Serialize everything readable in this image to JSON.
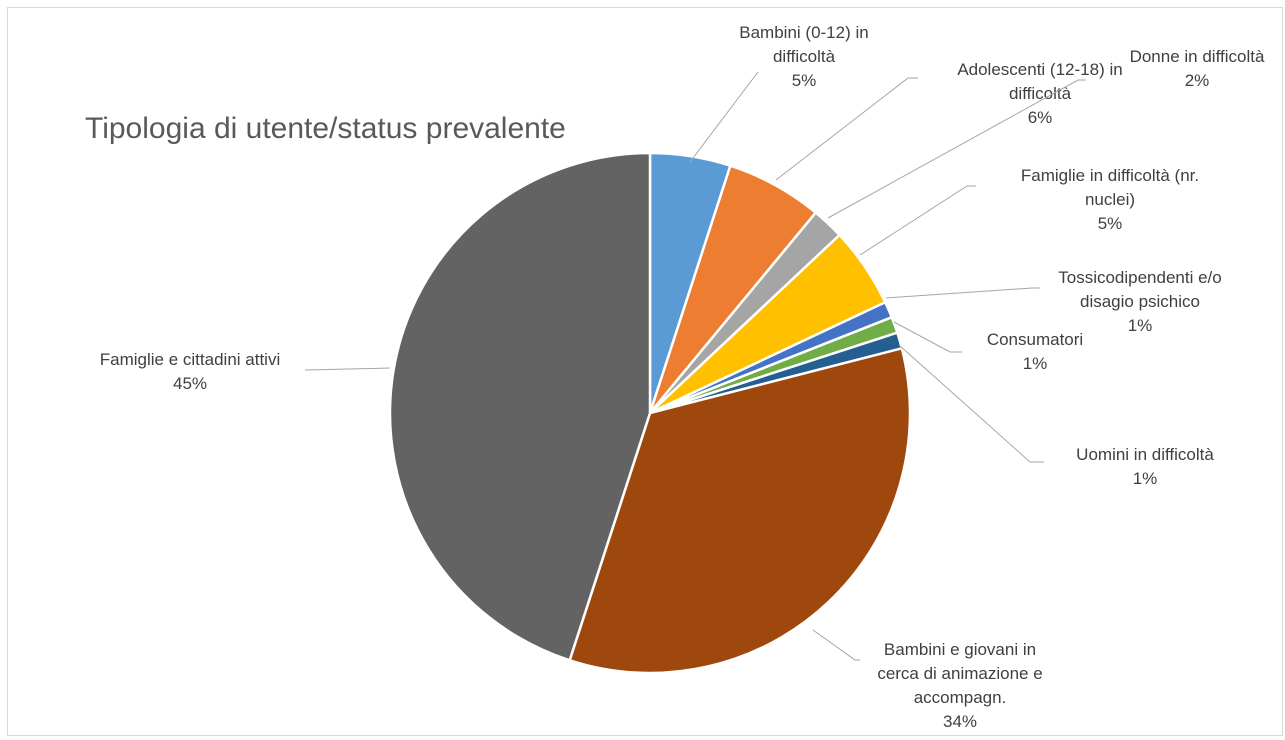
{
  "chart_data": {
    "type": "pie",
    "title": "Tipologia di utente/status prevalente",
    "categories": [
      "Bambini (0-12) in difficoltà",
      "Adolescenti (12-18) in difficoltà",
      "Donne in difficoltà",
      "Famiglie in difficoltà (nr. nuclei)",
      "Tossicodipendenti e/o disagio psichico",
      "Consumatori",
      "Uomini in difficoltà",
      "Bambini e giovani in cerca di animazione e accompagn.",
      "Famiglie e cittadini attivi"
    ],
    "values": [
      5,
      6,
      2,
      5,
      1,
      1,
      1,
      34,
      45
    ],
    "value_labels": [
      "5%",
      "6%",
      "2%",
      "5%",
      "1%",
      "1%",
      "1%",
      "34%",
      "45%"
    ],
    "colors": [
      "#5b9bd5",
      "#ed7d31",
      "#a5a5a5",
      "#ffc000",
      "#4472c4",
      "#70ad47",
      "#255e91",
      "#9e480e",
      "#636363"
    ]
  }
}
